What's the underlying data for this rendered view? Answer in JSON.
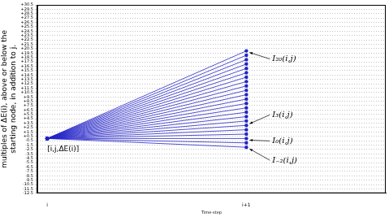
{
  "chart_data": {
    "type": "line",
    "xlabel": "Time-step",
    "ylabel": [
      "multiples of ΔE(i), above or below the",
      "starting node, in addition to j."
    ],
    "x": [
      0,
      1
    ],
    "xlim": [
      -0.05,
      1.7
    ],
    "xticks": [
      {
        "value": 0,
        "label": "i"
      },
      {
        "value": 1,
        "label": "i+1"
      }
    ],
    "ylim": [
      -12.5,
      30.5
    ],
    "yticks": [
      -12.5,
      -11.5,
      -10.5,
      -9.5,
      -8.5,
      -7.5,
      -6.5,
      -5.5,
      -4.5,
      -3.5,
      -2.5,
      -1.5,
      -0.5,
      {
        "value": 0.5,
        "label": "+0.5"
      },
      {
        "value": 1.5,
        "label": "+1.5"
      },
      {
        "value": 2.5,
        "label": "+2.5"
      },
      {
        "value": 3.5,
        "label": "+3.5"
      },
      {
        "value": 4.5,
        "label": "+4.5"
      },
      {
        "value": 5.5,
        "label": "+5.5"
      },
      {
        "value": 6.5,
        "label": "+6.5"
      },
      {
        "value": 7.5,
        "label": "+7.5"
      },
      {
        "value": 8.5,
        "label": "+8.5"
      },
      {
        "value": 9.5,
        "label": "+9.5"
      },
      {
        "value": 10.5,
        "label": "+10.5"
      },
      {
        "value": 11.5,
        "label": "+11.5"
      },
      {
        "value": 12.5,
        "label": "+12.5"
      },
      {
        "value": 13.5,
        "label": "+13.5"
      },
      {
        "value": 14.5,
        "label": "+14.5"
      },
      {
        "value": 15.5,
        "label": "+15.5"
      },
      {
        "value": 16.5,
        "label": "+16.5"
      },
      {
        "value": 17.5,
        "label": "+17.5"
      },
      {
        "value": 18.5,
        "label": "+18.5"
      },
      {
        "value": 19.5,
        "label": "+19.5"
      },
      {
        "value": 20.5,
        "label": "+20.5"
      },
      {
        "value": 21.5,
        "label": "+21.5"
      },
      {
        "value": 22.5,
        "label": "+22.5"
      },
      {
        "value": 23.5,
        "label": "+23.5"
      },
      {
        "value": 24.5,
        "label": "+24.5"
      },
      {
        "value": 25.5,
        "label": "+25.5"
      },
      {
        "value": 26.5,
        "label": "+26.5"
      },
      {
        "value": 27.5,
        "label": "+27.5"
      },
      {
        "value": 28.5,
        "label": "+28.5"
      },
      {
        "value": 29.5,
        "label": "+29.5"
      },
      {
        "value": 30.5,
        "label": "+30.5"
      }
    ],
    "grid": true,
    "color": "#2323c8",
    "marker": "o",
    "series": [
      {
        "values": [
          0,
          -2
        ]
      },
      {
        "values": [
          0,
          -1
        ]
      },
      {
        "values": [
          0,
          0
        ]
      },
      {
        "values": [
          0,
          1
        ]
      },
      {
        "values": [
          0,
          2
        ]
      },
      {
        "values": [
          0,
          3
        ]
      },
      {
        "values": [
          0,
          4
        ]
      },
      {
        "values": [
          0,
          5
        ]
      },
      {
        "values": [
          0,
          6
        ]
      },
      {
        "values": [
          0,
          7
        ]
      },
      {
        "values": [
          0,
          8
        ]
      },
      {
        "values": [
          0,
          9
        ]
      },
      {
        "values": [
          0,
          10
        ]
      },
      {
        "values": [
          0,
          11
        ]
      },
      {
        "values": [
          0,
          12
        ]
      },
      {
        "values": [
          0,
          13
        ]
      },
      {
        "values": [
          0,
          14
        ]
      },
      {
        "values": [
          0,
          15
        ]
      },
      {
        "values": [
          0,
          16
        ]
      },
      {
        "values": [
          0,
          17
        ]
      },
      {
        "values": [
          0,
          18
        ]
      },
      {
        "values": [
          0,
          19
        ]
      },
      {
        "values": [
          0,
          20
        ]
      }
    ],
    "annotations": [
      {
        "text": "[i,j,ΔE(i)]",
        "x": 0,
        "y": 0
      },
      {
        "text": "I₂₀(i,j)",
        "x": 1,
        "y": 20
      },
      {
        "text": "I₃(i,j)",
        "x": 1,
        "y": 3
      },
      {
        "text": "I₀(i,j)",
        "x": 1,
        "y": 0
      },
      {
        "text": "I₋₂(i,j)",
        "x": 1,
        "y": -2
      }
    ]
  }
}
